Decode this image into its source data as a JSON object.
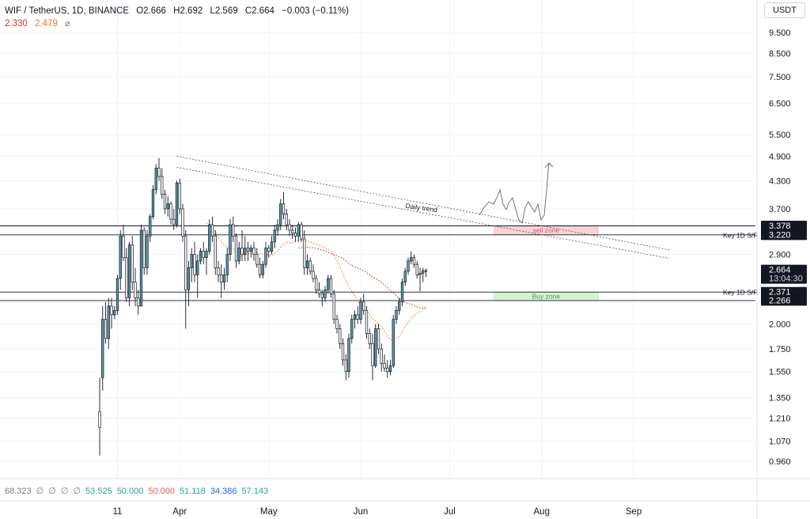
{
  "header": {
    "symbol": "WIF / TetherUS, 1D, BINANCE",
    "open_label": "O",
    "open": "2.666",
    "high_label": "H",
    "high": "2.692",
    "low_label": "L",
    "low": "2.569",
    "close_label": "C",
    "close": "2.664",
    "change": "−0.003 (−0.11%)",
    "ma1": "2.330",
    "ma2": "2.479",
    "eye_icon": "eye-off-icon"
  },
  "currency_button": "USDT",
  "indicator_row": [
    {
      "text": "68.323",
      "color": "#787b86"
    },
    {
      "text": "∅",
      "color": "#787b86"
    },
    {
      "text": "∅",
      "color": "#787b86"
    },
    {
      "text": "∅",
      "color": "#787b86"
    },
    {
      "text": "∅",
      "color": "#787b86"
    },
    {
      "text": "53.525",
      "color": "#26a69a"
    },
    {
      "text": "50.000",
      "color": "#26a69a"
    },
    {
      "text": "50.000",
      "color": "#ef5350"
    },
    {
      "text": "51.118",
      "color": "#26a69a"
    },
    {
      "text": "34.386",
      "color": "#2962ff"
    },
    {
      "text": "57.143",
      "color": "#26a69a"
    }
  ],
  "colors": {
    "candle_up": "#5b9ea6",
    "candle_down": "#131722",
    "ma1": "#c0392b",
    "ma2": "#e67e22",
    "sell_zone_fill": "#f9d3d7",
    "buy_zone_fill": "#d6f2d3"
  },
  "chart_data": {
    "type": "candlestick",
    "y_scale": "log",
    "y_ticks": [
      "9.500",
      "8.500",
      "7.500",
      "6.500",
      "5.500",
      "4.900",
      "4.300",
      "3.700",
      "2.900",
      "2.000",
      "1.750",
      "1.550",
      "1.350",
      "1.210",
      "1.070",
      "0.960"
    ],
    "x_ticks": [
      {
        "label": "11",
        "day": 10
      },
      {
        "label": "Apr",
        "day": 31
      },
      {
        "label": "May",
        "day": 61
      },
      {
        "label": "Jun",
        "day": 92
      },
      {
        "label": "Jul",
        "day": 122
      },
      {
        "label": "Aug",
        "day": 153
      },
      {
        "label": "Sep",
        "day": 184
      }
    ],
    "price_tags": [
      {
        "value": 3.378,
        "text": "3.378"
      },
      {
        "value": 3.22,
        "text": "3.220"
      },
      {
        "value": 2.664,
        "text": "2.664",
        "sub": "13:04:30"
      },
      {
        "value": 2.371,
        "text": "2.371"
      },
      {
        "value": 2.266,
        "text": "2.266"
      }
    ],
    "horizontal_levels": [
      3.378,
      3.22,
      2.371,
      2.266
    ],
    "level_labels": [
      {
        "value": 3.22,
        "text": "Key 1D S/R"
      },
      {
        "value": 2.371,
        "text": "Key 1D S/R"
      }
    ],
    "zones": [
      {
        "label": "sell zone",
        "top": 3.378,
        "bottom": 3.22,
        "day_start": 137,
        "day_end": 172,
        "text_color": "#e05a6a"
      },
      {
        "label": "Buy zone",
        "top": 2.371,
        "bottom": 2.266,
        "day_start": 137,
        "day_end": 172,
        "text_color": "#43a047"
      }
    ],
    "trendlines": [
      {
        "from": [
          30,
          4.9
        ],
        "to": [
          196,
          2.97
        ]
      },
      {
        "from": [
          30,
          4.62
        ],
        "to": [
          196,
          2.84
        ]
      }
    ],
    "trend_label": "Daily trend",
    "candles": [
      [
        4,
        1.25,
        1.5,
        0.99,
        1.15
      ],
      [
        5,
        1.5,
        2.2,
        1.4,
        2.05
      ],
      [
        6,
        2.05,
        2.25,
        1.8,
        1.85
      ],
      [
        7,
        1.85,
        2.3,
        1.75,
        2.2
      ],
      [
        8,
        2.2,
        2.3,
        1.95,
        2.1
      ],
      [
        9,
        2.1,
        2.2,
        2.05,
        2.15
      ],
      [
        10,
        2.15,
        2.6,
        2.1,
        2.55
      ],
      [
        11,
        2.55,
        3.3,
        2.4,
        3.2
      ],
      [
        12,
        3.2,
        3.4,
        2.8,
        2.85
      ],
      [
        13,
        2.85,
        3.0,
        2.25,
        2.3
      ],
      [
        14,
        2.3,
        3.1,
        2.2,
        3.05
      ],
      [
        15,
        3.05,
        3.2,
        2.4,
        2.5
      ],
      [
        16,
        2.5,
        2.7,
        2.2,
        2.3
      ],
      [
        17,
        2.3,
        2.4,
        2.1,
        2.2
      ],
      [
        18,
        2.2,
        3.4,
        2.2,
        3.3
      ],
      [
        19,
        3.3,
        3.35,
        2.6,
        2.7
      ],
      [
        20,
        2.7,
        3.3,
        2.6,
        3.2
      ],
      [
        21,
        3.2,
        3.6,
        3.1,
        3.55
      ],
      [
        22,
        3.55,
        4.2,
        3.5,
        4.1
      ],
      [
        23,
        4.1,
        4.7,
        4.0,
        4.6
      ],
      [
        24,
        4.6,
        4.85,
        4.3,
        4.4
      ],
      [
        25,
        4.4,
        4.6,
        3.9,
        4.0
      ],
      [
        26,
        4.0,
        4.1,
        3.6,
        3.7
      ],
      [
        27,
        3.7,
        3.95,
        3.55,
        3.8
      ],
      [
        28,
        3.8,
        3.85,
        3.4,
        3.5
      ],
      [
        29,
        3.5,
        3.7,
        3.3,
        3.4
      ],
      [
        30,
        3.4,
        4.3,
        3.35,
        4.25
      ],
      [
        31,
        4.25,
        4.35,
        3.6,
        3.7
      ],
      [
        32,
        3.7,
        3.8,
        3.1,
        3.2
      ],
      [
        33,
        3.2,
        3.3,
        1.95,
        2.4
      ],
      [
        34,
        2.4,
        2.8,
        2.2,
        2.7
      ],
      [
        35,
        2.7,
        3.0,
        2.5,
        2.9
      ],
      [
        36,
        2.9,
        3.1,
        2.5,
        2.6
      ],
      [
        37,
        2.6,
        2.9,
        2.3,
        2.8
      ],
      [
        38,
        2.8,
        3.0,
        2.75,
        2.95
      ],
      [
        39,
        2.95,
        3.1,
        2.75,
        2.85
      ],
      [
        40,
        2.85,
        3.0,
        2.6,
        2.95
      ],
      [
        41,
        2.95,
        3.5,
        2.9,
        3.4
      ],
      [
        42,
        3.4,
        3.55,
        3.1,
        3.2
      ],
      [
        43,
        3.2,
        3.3,
        2.6,
        2.7
      ],
      [
        44,
        2.7,
        2.8,
        2.5,
        2.6
      ],
      [
        45,
        2.6,
        2.75,
        2.3,
        2.5
      ],
      [
        46,
        2.5,
        2.7,
        2.4,
        2.6
      ],
      [
        47,
        2.6,
        3.0,
        2.5,
        2.9
      ],
      [
        48,
        2.9,
        3.5,
        2.8,
        3.4
      ],
      [
        49,
        3.4,
        3.55,
        3.1,
        3.2
      ],
      [
        50,
        3.2,
        3.25,
        2.7,
        2.8
      ],
      [
        51,
        2.8,
        3.1,
        2.75,
        3.0
      ],
      [
        52,
        3.0,
        3.3,
        2.8,
        2.9
      ],
      [
        53,
        2.9,
        3.2,
        2.8,
        3.0
      ],
      [
        54,
        3.0,
        3.1,
        2.8,
        2.95
      ],
      [
        55,
        2.95,
        3.05,
        2.85,
        3.0
      ],
      [
        56,
        3.0,
        3.1,
        2.8,
        2.9
      ],
      [
        57,
        2.9,
        3.0,
        2.7,
        2.75
      ],
      [
        58,
        2.75,
        2.85,
        2.55,
        2.6
      ],
      [
        59,
        2.6,
        2.8,
        2.55,
        2.75
      ],
      [
        60,
        2.75,
        3.1,
        2.7,
        3.0
      ],
      [
        61,
        3.0,
        3.05,
        2.85,
        2.95
      ],
      [
        62,
        2.95,
        3.2,
        2.9,
        3.1
      ],
      [
        63,
        3.1,
        3.4,
        3.0,
        3.3
      ],
      [
        64,
        3.3,
        3.5,
        3.2,
        3.4
      ],
      [
        65,
        3.4,
        3.9,
        3.3,
        3.8
      ],
      [
        66,
        3.8,
        4.05,
        3.5,
        3.6
      ],
      [
        67,
        3.6,
        3.7,
        3.3,
        3.4
      ],
      [
        68,
        3.4,
        3.5,
        3.2,
        3.3
      ],
      [
        69,
        3.3,
        3.4,
        3.15,
        3.25
      ],
      [
        70,
        3.25,
        3.35,
        3.1,
        3.2
      ],
      [
        71,
        3.2,
        3.45,
        3.1,
        3.4
      ],
      [
        72,
        3.4,
        3.45,
        3.1,
        3.15
      ],
      [
        73,
        3.15,
        3.3,
        2.6,
        2.7
      ],
      [
        74,
        2.7,
        2.9,
        2.6,
        2.8
      ],
      [
        75,
        2.8,
        2.85,
        2.6,
        2.65
      ],
      [
        76,
        2.65,
        2.75,
        2.5,
        2.55
      ],
      [
        77,
        2.55,
        2.6,
        2.35,
        2.4
      ],
      [
        78,
        2.4,
        2.5,
        2.3,
        2.35
      ],
      [
        79,
        2.35,
        2.4,
        2.2,
        2.3
      ],
      [
        80,
        2.3,
        2.45,
        2.25,
        2.4
      ],
      [
        81,
        2.4,
        2.6,
        2.35,
        2.55
      ],
      [
        82,
        2.55,
        2.6,
        2.3,
        2.35
      ],
      [
        83,
        2.35,
        2.4,
        2.0,
        2.05
      ],
      [
        84,
        2.05,
        2.1,
        1.9,
        1.95
      ],
      [
        85,
        1.95,
        2.0,
        1.75,
        1.8
      ],
      [
        86,
        1.8,
        1.85,
        1.6,
        1.65
      ],
      [
        87,
        1.65,
        1.7,
        1.48,
        1.55
      ],
      [
        88,
        1.55,
        1.9,
        1.5,
        1.85
      ],
      [
        89,
        1.85,
        2.1,
        1.8,
        2.05
      ],
      [
        90,
        2.05,
        2.15,
        1.95,
        2.1
      ],
      [
        91,
        2.1,
        2.2,
        2.0,
        2.05
      ],
      [
        92,
        2.05,
        2.3,
        2.0,
        2.25
      ],
      [
        93,
        2.25,
        2.35,
        2.1,
        2.15
      ],
      [
        94,
        2.15,
        2.2,
        1.85,
        1.9
      ],
      [
        95,
        1.9,
        1.95,
        1.75,
        1.8
      ],
      [
        96,
        1.8,
        1.9,
        1.48,
        1.6
      ],
      [
        97,
        1.6,
        2.0,
        1.58,
        1.95
      ],
      [
        98,
        1.95,
        2.0,
        1.7,
        1.75
      ],
      [
        99,
        1.75,
        1.8,
        1.55,
        1.62
      ],
      [
        100,
        1.62,
        1.7,
        1.55,
        1.58
      ],
      [
        101,
        1.58,
        1.65,
        1.5,
        1.55
      ],
      [
        102,
        1.55,
        1.65,
        1.52,
        1.6
      ],
      [
        103,
        1.6,
        2.1,
        1.58,
        2.05
      ],
      [
        104,
        2.05,
        2.2,
        2.0,
        2.15
      ],
      [
        105,
        2.15,
        2.3,
        2.1,
        2.25
      ],
      [
        106,
        2.25,
        2.55,
        2.2,
        2.5
      ],
      [
        107,
        2.5,
        2.7,
        2.45,
        2.65
      ],
      [
        108,
        2.65,
        2.85,
        2.6,
        2.8
      ],
      [
        109,
        2.8,
        2.95,
        2.75,
        2.85
      ],
      [
        110,
        2.85,
        2.9,
        2.7,
        2.75
      ],
      [
        111,
        2.75,
        2.8,
        2.55,
        2.6
      ],
      [
        112,
        2.6,
        2.7,
        2.38,
        2.62
      ],
      [
        113,
        2.62,
        2.7,
        2.5,
        2.66
      ],
      [
        114,
        2.66,
        2.69,
        2.57,
        2.66
      ]
    ],
    "ma_slow_start": [
      71,
      3.05
    ],
    "sketch": "hand-drawn wavy projection path with upward arrow"
  }
}
